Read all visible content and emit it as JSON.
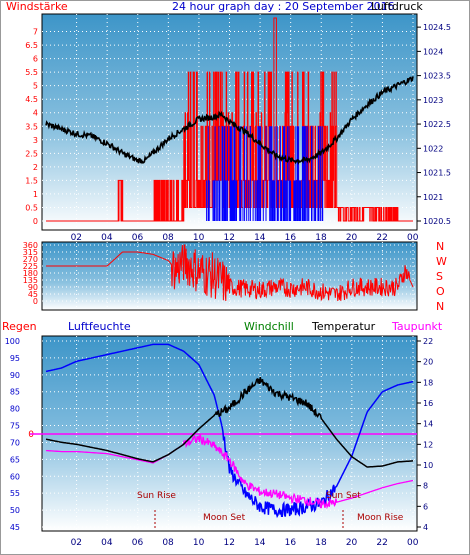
{
  "header": {
    "left_label": "Windstärke",
    "title": "24 hour graph day : 20 September 2016",
    "right_label": "Luftdruck"
  },
  "colors": {
    "wind_speed": "#ff0000",
    "wind_gust": "#0000ff",
    "pressure": "#000000",
    "direction": "#ff0000",
    "rain": "#ff0000",
    "humidity": "#0000ff",
    "windchill": "#008000",
    "temperature": "#000000",
    "dewpoint": "#ff00ff",
    "moon": "#aa0000"
  },
  "chart_data": [
    {
      "type": "line",
      "name": "wind-and-pressure",
      "left_axis_label": "Windstärke",
      "right_axis_label": "Luftdruck",
      "x_ticks": [
        "02",
        "04",
        "06",
        "08",
        "10",
        "12",
        "14",
        "16",
        "18",
        "20",
        "22",
        "00"
      ],
      "y_left_ticks": [
        "0",
        "0.5",
        "1",
        "1.5",
        "2",
        "2.5",
        "3",
        "3.5",
        "4",
        "4.5",
        "5",
        "5.5",
        "6",
        "6.5",
        "7"
      ],
      "y_left_range": [
        0,
        7.5
      ],
      "y_right_ticks": [
        "1020.5",
        "1021",
        "1021.5",
        "1022",
        "1022.5",
        "1023",
        "1023.5",
        "1024",
        "1024.5"
      ],
      "y_right_range": [
        1020.5,
        1024.5
      ],
      "pressure": {
        "x": [
          0,
          1,
          2,
          3,
          4,
          5,
          6,
          6.5,
          7,
          8,
          9,
          10,
          11,
          11.5,
          12,
          13,
          14,
          15,
          16,
          17,
          18,
          19,
          20,
          21,
          22,
          23,
          24
        ],
        "y": [
          1022.5,
          1022.4,
          1022.3,
          1022.25,
          1022.1,
          1021.9,
          1021.75,
          1021.75,
          1021.9,
          1022.2,
          1022.4,
          1022.6,
          1022.65,
          1022.7,
          1022.55,
          1022.35,
          1022.1,
          1021.85,
          1021.75,
          1021.75,
          1021.9,
          1022.2,
          1022.6,
          1022.9,
          1023.15,
          1023.3,
          1023.45
        ]
      },
      "wind_speed_segments": [
        {
          "from": 0,
          "to": 4.7,
          "level": 0
        },
        {
          "from": 4.7,
          "to": 5,
          "level": 1.5
        },
        {
          "from": 5,
          "to": 9,
          "level": 0
        },
        {
          "from": 9,
          "to": 19,
          "level": 3.5
        },
        {
          "from": 19,
          "to": 23,
          "level": 0.5
        },
        {
          "from": 23,
          "to": 24,
          "level": 0
        }
      ],
      "wind_gust_range": [
        10.5,
        18.2
      ]
    },
    {
      "type": "line",
      "name": "wind-direction",
      "y_ticks": [
        "360",
        "315",
        "270",
        "225",
        "180",
        "135",
        "90",
        "45",
        "0"
      ],
      "y_range": [
        0,
        360
      ],
      "compass_labels": [
        "N",
        "W",
        "S",
        "O",
        "N"
      ],
      "x": [
        0,
        1,
        2,
        3,
        4,
        5,
        6,
        7,
        8,
        8.5,
        9,
        10,
        11,
        12,
        13,
        14,
        15,
        16,
        17,
        18,
        19,
        20,
        21,
        22,
        23,
        23.5,
        24
      ],
      "y": [
        225,
        225,
        225,
        225,
        225,
        315,
        315,
        300,
        260,
        200,
        260,
        190,
        160,
        90,
        80,
        70,
        90,
        80,
        90,
        60,
        40,
        90,
        90,
        90,
        90,
        200,
        90
      ]
    },
    {
      "type": "line",
      "name": "temperature-humidity",
      "legend": [
        "Regen",
        "Luftfeuchte",
        "Windchill",
        "Temperatur",
        "Taupunkt"
      ],
      "left_ticks": [
        "100",
        "95",
        "90",
        "85",
        "80",
        "75",
        "70",
        "65",
        "60",
        "55",
        "50",
        "45"
      ],
      "left_range": [
        45,
        100
      ],
      "right_ticks": [
        "22",
        "20",
        "18",
        "16",
        "14",
        "12",
        "10",
        "8",
        "6",
        "4"
      ],
      "right_range": [
        4,
        22
      ],
      "rain_label": "0",
      "x_ticks": [
        "02",
        "04",
        "06",
        "08",
        "10",
        "12",
        "14",
        "16",
        "18",
        "20",
        "22",
        "00"
      ],
      "humidity": {
        "x": [
          0,
          1,
          2,
          3,
          4,
          5,
          6,
          7,
          8,
          9,
          10,
          11,
          11.5,
          12,
          13,
          14,
          15,
          16,
          17,
          18,
          19,
          20,
          21,
          22,
          23,
          24
        ],
        "y": [
          91,
          92,
          94,
          95,
          96,
          97,
          98,
          99,
          99,
          97,
          93,
          84,
          75,
          62,
          55,
          51,
          50,
          50,
          51,
          52,
          57,
          66,
          79,
          85,
          87,
          88
        ]
      },
      "temperature": {
        "x": [
          0,
          1,
          2,
          3,
          4,
          5,
          6,
          7,
          8,
          9,
          10,
          11,
          12,
          13,
          14,
          15,
          16,
          17,
          18,
          19,
          20,
          21,
          22,
          23,
          24
        ],
        "y": [
          12.5,
          12.2,
          12,
          11.7,
          11.4,
          11,
          10.6,
          10.3,
          11,
          12,
          13.5,
          14.8,
          15.5,
          17,
          18.2,
          17,
          16.5,
          16,
          14.5,
          12.5,
          10.8,
          9.8,
          9.9,
          10.3,
          10.4
        ]
      },
      "dewpoint": {
        "x": [
          0,
          1,
          2,
          3,
          4,
          5,
          6,
          7,
          8,
          9,
          10,
          11,
          12,
          13,
          14,
          15,
          16,
          17,
          18,
          19,
          20,
          21,
          22,
          23,
          24
        ],
        "y": [
          11.4,
          11.3,
          11.3,
          11.2,
          11.1,
          10.8,
          10.5,
          10.2,
          11,
          12,
          12.6,
          11.8,
          10.5,
          8.2,
          7.4,
          7.2,
          6.8,
          6.6,
          6.2,
          6.4,
          6.8,
          7.3,
          7.8,
          8.2,
          8.5
        ]
      },
      "annotations": [
        "Sun Rise",
        "Sun Set",
        "Moon Set",
        "Moon Rise"
      ]
    }
  ]
}
